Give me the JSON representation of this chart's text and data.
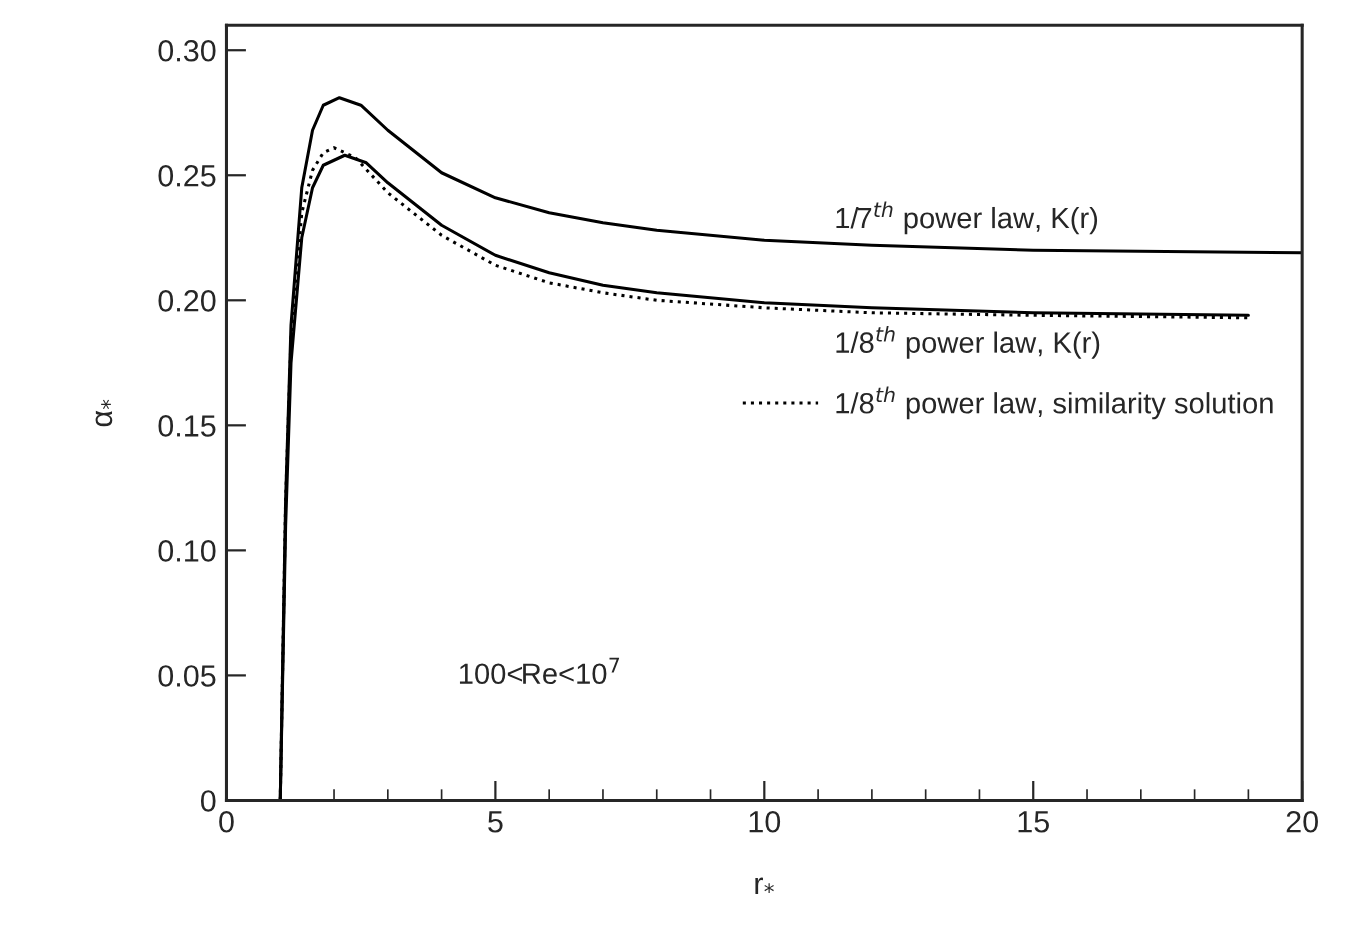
{
  "chart_data": {
    "type": "line",
    "xlabel": "r$_{*}$",
    "ylabel": "α$_{*}$",
    "xlim": [
      0,
      20
    ],
    "ylim": [
      0,
      0.31
    ],
    "xticks": [
      0,
      {
        "value": 1,
        "label": null
      },
      {
        "value": 2,
        "label": null
      },
      {
        "value": 3,
        "label": null
      },
      {
        "value": 4,
        "label": null
      },
      5,
      {
        "value": 6,
        "label": null
      },
      {
        "value": 7,
        "label": null
      },
      {
        "value": 8,
        "label": null
      },
      {
        "value": 9,
        "label": null
      },
      10,
      {
        "value": 11,
        "label": null
      },
      {
        "value": 12,
        "label": null
      },
      {
        "value": 13,
        "label": null
      },
      {
        "value": 14,
        "label": null
      },
      15,
      {
        "value": 16,
        "label": null
      },
      {
        "value": 17,
        "label": null
      },
      {
        "value": 18,
        "label": null
      },
      {
        "value": 19,
        "label": null
      },
      20
    ],
    "yticks": [
      0,
      {
        "value": 0.05,
        "label": "0.05"
      },
      {
        "value": 0.1,
        "label": "0.10"
      },
      {
        "value": 0.15,
        "label": "0.15"
      },
      {
        "value": 0.2,
        "label": "0.20"
      },
      {
        "value": 0.25,
        "label": "0.25"
      },
      {
        "value": 0.3,
        "label": "0.30"
      }
    ],
    "grid": false,
    "marker": "none",
    "annotations": [
      "100<Re<10$^{7}$"
    ],
    "series": [
      {
        "name": "1/7$^{th}$ power law, K(r)",
        "color": "#000000",
        "line_style": "solid",
        "x": [
          1,
          1.1,
          1.2,
          1.4,
          1.6,
          1.8,
          2.1,
          2.5,
          3,
          4,
          5,
          6,
          7,
          8,
          10,
          12,
          15,
          20
        ],
        "values": [
          0,
          0.12,
          0.19,
          0.245,
          0.268,
          0.278,
          0.281,
          0.278,
          0.268,
          0.251,
          0.241,
          0.235,
          0.231,
          0.228,
          0.224,
          0.222,
          0.22,
          0.219
        ]
      },
      {
        "name": "1/8$^{th}$ power law, K(r)",
        "color": "#000000",
        "line_style": "solid",
        "x": [
          1,
          1.1,
          1.2,
          1.4,
          1.6,
          1.8,
          2.2,
          2.6,
          3,
          4,
          5,
          6,
          7,
          8,
          10,
          12,
          15,
          19
        ],
        "values": [
          0,
          0.11,
          0.175,
          0.225,
          0.245,
          0.254,
          0.258,
          0.255,
          0.247,
          0.23,
          0.218,
          0.211,
          0.206,
          0.203,
          0.199,
          0.197,
          0.195,
          0.194
        ]
      },
      {
        "name": "1/8$^{th}$ power law, similarity solution",
        "color": "#000000",
        "line_style": "dotted",
        "x": [
          1,
          1.1,
          1.2,
          1.4,
          1.6,
          1.8,
          2.0,
          2.4,
          3,
          4,
          5,
          6,
          7,
          8,
          10,
          12,
          15,
          19
        ],
        "values": [
          0,
          0.12,
          0.185,
          0.235,
          0.252,
          0.259,
          0.261,
          0.257,
          0.243,
          0.226,
          0.214,
          0.207,
          0.203,
          0.2,
          0.197,
          0.195,
          0.194,
          0.193
        ]
      }
    ]
  }
}
